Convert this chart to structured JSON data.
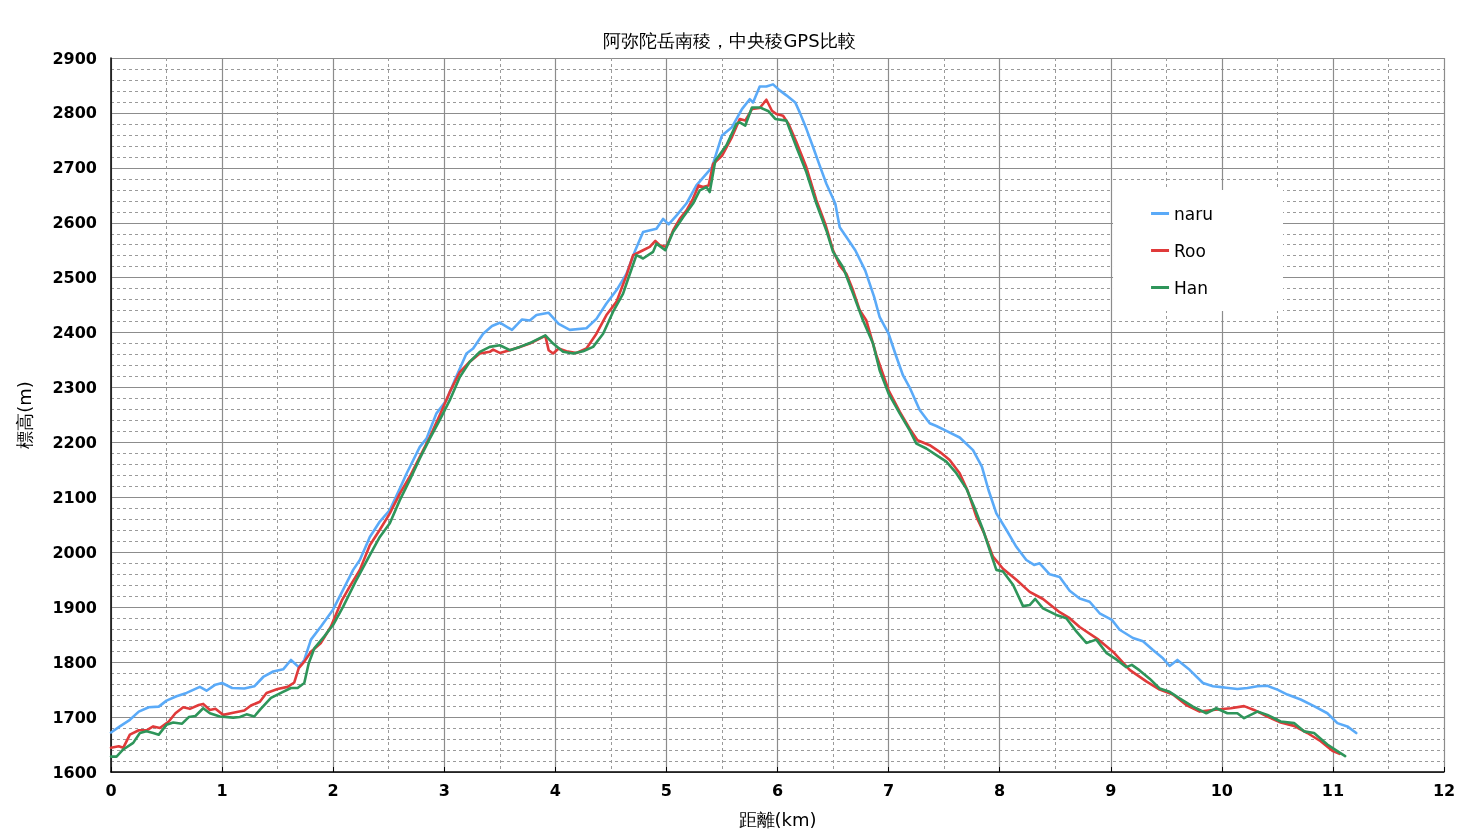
{
  "chart_data": {
    "type": "line",
    "title": "阿弥陀岳南稜，中央稜GPS比較",
    "xlabel": "距離(km)",
    "ylabel": "標高(m)",
    "xlim": [
      0,
      12
    ],
    "xticks": [
      0,
      1,
      2,
      3,
      4,
      5,
      6,
      7,
      8,
      9,
      10,
      11,
      12
    ],
    "ylim": [
      1600,
      2900
    ],
    "yticks": [
      1600,
      1700,
      1800,
      1900,
      2000,
      2100,
      2200,
      2300,
      2400,
      2500,
      2600,
      2700,
      2800,
      2900
    ],
    "grid": true,
    "legend": "top right",
    "line_style": "solid",
    "series": [
      {
        "name": "naru",
        "color": "#5aaaf8",
        "x": [
          0,
          0.08,
          0.17,
          0.25,
          0.34,
          0.43,
          0.5,
          0.59,
          0.68,
          0.8,
          0.86,
          0.94,
          1.0,
          1.09,
          1.2,
          1.29,
          1.37,
          1.46,
          1.55,
          1.62,
          1.69,
          1.74,
          1.8,
          1.89,
          2.0,
          2.09,
          2.18,
          2.24,
          2.33,
          2.42,
          2.51,
          2.6,
          2.66,
          2.78,
          2.84,
          2.93,
          3.02,
          3.1,
          3.2,
          3.26,
          3.35,
          3.43,
          3.5,
          3.61,
          3.7,
          3.77,
          3.83,
          3.94,
          4.03,
          4.13,
          4.28,
          4.37,
          4.46,
          4.55,
          4.64,
          4.72,
          4.79,
          4.91,
          4.97,
          5.02,
          5.09,
          5.18,
          5.27,
          5.41,
          5.5,
          5.59,
          5.68,
          5.75,
          5.78,
          5.84,
          5.9,
          5.96,
          6.02,
          6.08,
          6.16,
          6.2,
          6.26,
          6.32,
          6.38,
          6.44,
          6.52,
          6.56,
          6.62,
          6.7,
          6.79,
          6.87,
          6.92,
          7.0,
          7.07,
          7.13,
          7.19,
          7.28,
          7.37,
          7.43,
          7.52,
          7.64,
          7.76,
          7.84,
          7.9,
          7.97,
          8.06,
          8.15,
          8.24,
          8.31,
          8.36,
          8.45,
          8.54,
          8.63,
          8.72,
          8.81,
          8.9,
          9.01,
          9.08,
          9.2,
          9.29,
          9.38,
          9.47,
          9.53,
          9.6,
          9.71,
          9.83,
          9.92,
          10.02,
          10.14,
          10.23,
          10.32,
          10.41,
          10.5,
          10.59,
          10.71,
          10.83,
          10.95,
          11.04,
          11.13,
          11.21
        ],
        "values": [
          1672,
          1683,
          1695,
          1710,
          1718,
          1719,
          1730,
          1738,
          1744,
          1755,
          1748,
          1759,
          1762,
          1753,
          1752,
          1756,
          1773,
          1783,
          1787,
          1804,
          1791,
          1804,
          1841,
          1865,
          1896,
          1932,
          1968,
          1986,
          2028,
          2056,
          2077,
          2116,
          2143,
          2192,
          2207,
          2253,
          2277,
          2316,
          2362,
          2371,
          2398,
          2412,
          2418,
          2405,
          2424,
          2422,
          2432,
          2436,
          2416,
          2405,
          2408,
          2425,
          2453,
          2477,
          2507,
          2550,
          2583,
          2589,
          2607,
          2597,
          2613,
          2635,
          2668,
          2701,
          2759,
          2774,
          2807,
          2825,
          2819,
          2848,
          2848,
          2852,
          2841,
          2832,
          2819,
          2801,
          2771,
          2738,
          2704,
          2671,
          2635,
          2592,
          2574,
          2550,
          2513,
          2465,
          2428,
          2398,
          2356,
          2322,
          2300,
          2259,
          2235,
          2230,
          2221,
          2209,
          2186,
          2156,
          2113,
          2071,
          2041,
          2010,
          1986,
          1977,
          1980,
          1960,
          1955,
          1930,
          1916,
          1910,
          1889,
          1877,
          1859,
          1844,
          1838,
          1822,
          1807,
          1793,
          1804,
          1786,
          1762,
          1756,
          1754,
          1751,
          1753,
          1756,
          1757,
          1750,
          1741,
          1732,
          1720,
          1707,
          1689,
          1683,
          1671
        ]
      },
      {
        "name": "Roo",
        "color": "#e03a3a",
        "x": [
          0,
          0.07,
          0.11,
          0.17,
          0.25,
          0.32,
          0.38,
          0.44,
          0.52,
          0.58,
          0.65,
          0.71,
          0.79,
          0.83,
          0.89,
          0.94,
          1.01,
          1.1,
          1.2,
          1.26,
          1.34,
          1.4,
          1.5,
          1.59,
          1.65,
          1.69,
          1.74,
          1.8,
          1.89,
          1.98,
          2.08,
          2.15,
          2.24,
          2.33,
          2.42,
          2.51,
          2.6,
          2.69,
          2.78,
          2.87,
          2.96,
          3.05,
          3.14,
          3.23,
          3.32,
          3.41,
          3.44,
          3.5,
          3.59,
          3.68,
          3.77,
          3.86,
          3.91,
          3.94,
          3.98,
          4.03,
          4.1,
          4.19,
          4.28,
          4.37,
          4.46,
          4.55,
          4.64,
          4.7,
          4.79,
          4.85,
          4.9,
          4.94,
          5.0,
          5.06,
          5.12,
          5.18,
          5.24,
          5.29,
          5.33,
          5.38,
          5.42,
          5.5,
          5.59,
          5.66,
          5.71,
          5.77,
          5.84,
          5.9,
          5.95,
          5.99,
          6.05,
          6.1,
          6.17,
          6.26,
          6.35,
          6.43,
          6.5,
          6.56,
          6.62,
          6.68,
          6.74,
          6.8,
          6.89,
          7.0,
          7.1,
          7.19,
          7.26,
          7.37,
          7.46,
          7.55,
          7.64,
          7.71,
          7.79,
          7.86,
          7.94,
          8.03,
          8.15,
          8.27,
          8.39,
          8.54,
          8.63,
          8.72,
          8.89,
          9.02,
          9.17,
          9.32,
          9.44,
          9.56,
          9.68,
          9.8,
          9.92,
          10.08,
          10.2,
          10.29,
          10.41,
          10.53,
          10.65,
          10.77,
          10.89,
          11.0,
          11.06
        ],
        "values": [
          1644,
          1647,
          1644,
          1668,
          1676,
          1676,
          1683,
          1680,
          1692,
          1707,
          1718,
          1715,
          1722,
          1724,
          1713,
          1715,
          1704,
          1708,
          1712,
          1721,
          1728,
          1744,
          1751,
          1755,
          1763,
          1789,
          1801,
          1819,
          1835,
          1865,
          1913,
          1938,
          1968,
          2013,
          2041,
          2071,
          2107,
          2138,
          2174,
          2210,
          2250,
          2292,
          2328,
          2347,
          2362,
          2365,
          2369,
          2363,
          2368,
          2374,
          2380,
          2389,
          2394,
          2368,
          2362,
          2371,
          2366,
          2363,
          2371,
          2398,
          2432,
          2456,
          2504,
          2541,
          2550,
          2556,
          2567,
          2559,
          2556,
          2586,
          2607,
          2622,
          2644,
          2668,
          2665,
          2668,
          2707,
          2722,
          2756,
          2789,
          2786,
          2807,
          2809,
          2824,
          2804,
          2798,
          2795,
          2780,
          2747,
          2701,
          2641,
          2598,
          2550,
          2522,
          2507,
          2477,
          2441,
          2422,
          2359,
          2295,
          2256,
          2225,
          2204,
          2195,
          2183,
          2168,
          2144,
          2113,
          2065,
          2035,
          1992,
          1970,
          1950,
          1928,
          1915,
          1891,
          1880,
          1864,
          1841,
          1819,
          1786,
          1765,
          1750,
          1741,
          1722,
          1710,
          1713,
          1716,
          1720,
          1713,
          1701,
          1690,
          1684,
          1671,
          1656,
          1638,
          1633
        ]
      },
      {
        "name": "Han",
        "color": "#2e955a",
        "x": [
          0,
          0.05,
          0.11,
          0.2,
          0.26,
          0.32,
          0.38,
          0.43,
          0.5,
          0.56,
          0.64,
          0.7,
          0.76,
          0.83,
          0.89,
          0.98,
          1.1,
          1.16,
          1.22,
          1.29,
          1.34,
          1.44,
          1.53,
          1.62,
          1.68,
          1.74,
          1.78,
          1.83,
          1.92,
          2.0,
          2.09,
          2.21,
          2.33,
          2.42,
          2.51,
          2.6,
          2.69,
          2.78,
          2.87,
          2.96,
          3.05,
          3.14,
          3.23,
          3.32,
          3.41,
          3.5,
          3.59,
          3.68,
          3.77,
          3.91,
          3.98,
          4.07,
          4.16,
          4.25,
          4.34,
          4.43,
          4.52,
          4.61,
          4.64,
          4.73,
          4.79,
          4.88,
          4.91,
          4.99,
          5.06,
          5.15,
          5.24,
          5.3,
          5.36,
          5.39,
          5.44,
          5.54,
          5.63,
          5.66,
          5.71,
          5.77,
          5.84,
          5.92,
          5.98,
          6.08,
          6.17,
          6.26,
          6.35,
          6.44,
          6.5,
          6.59,
          6.68,
          6.77,
          6.86,
          6.92,
          7.0,
          7.1,
          7.19,
          7.25,
          7.34,
          7.43,
          7.52,
          7.61,
          7.7,
          7.77,
          7.85,
          7.92,
          7.97,
          8.03,
          8.12,
          8.21,
          8.27,
          8.32,
          8.39,
          8.51,
          8.6,
          8.69,
          8.78,
          8.87,
          8.96,
          9.05,
          9.14,
          9.19,
          9.26,
          9.35,
          9.44,
          9.53,
          9.62,
          9.74,
          9.86,
          9.95,
          10.05,
          10.14,
          10.2,
          10.32,
          10.41,
          10.53,
          10.65,
          10.74,
          10.83,
          10.95,
          11.04,
          11.11
        ],
        "values": [
          1628,
          1628,
          1641,
          1653,
          1671,
          1674,
          1671,
          1668,
          1686,
          1690,
          1688,
          1700,
          1702,
          1716,
          1707,
          1701,
          1699,
          1700,
          1705,
          1701,
          1713,
          1735,
          1744,
          1753,
          1753,
          1762,
          1798,
          1825,
          1847,
          1868,
          1901,
          1950,
          1995,
          2028,
          2053,
          2095,
          2132,
          2171,
          2207,
          2241,
          2277,
          2319,
          2347,
          2365,
          2374,
          2377,
          2368,
          2374,
          2381,
          2395,
          2380,
          2365,
          2362,
          2366,
          2374,
          2398,
          2438,
          2471,
          2489,
          2541,
          2535,
          2547,
          2562,
          2550,
          2583,
          2610,
          2635,
          2659,
          2665,
          2656,
          2713,
          2741,
          2780,
          2783,
          2777,
          2810,
          2810,
          2803,
          2789,
          2786,
          2738,
          2692,
          2635,
          2586,
          2547,
          2519,
          2471,
          2422,
          2380,
          2331,
          2289,
          2253,
          2222,
          2198,
          2189,
          2177,
          2165,
          2144,
          2116,
          2083,
          2041,
          1998,
          1968,
          1965,
          1941,
          1902,
          1904,
          1915,
          1898,
          1886,
          1880,
          1856,
          1835,
          1841,
          1817,
          1805,
          1791,
          1795,
          1785,
          1770,
          1752,
          1746,
          1734,
          1719,
          1707,
          1716,
          1707,
          1707,
          1698,
          1710,
          1704,
          1692,
          1689,
          1674,
          1671,
          1650,
          1638,
          1629
        ]
      }
    ]
  }
}
